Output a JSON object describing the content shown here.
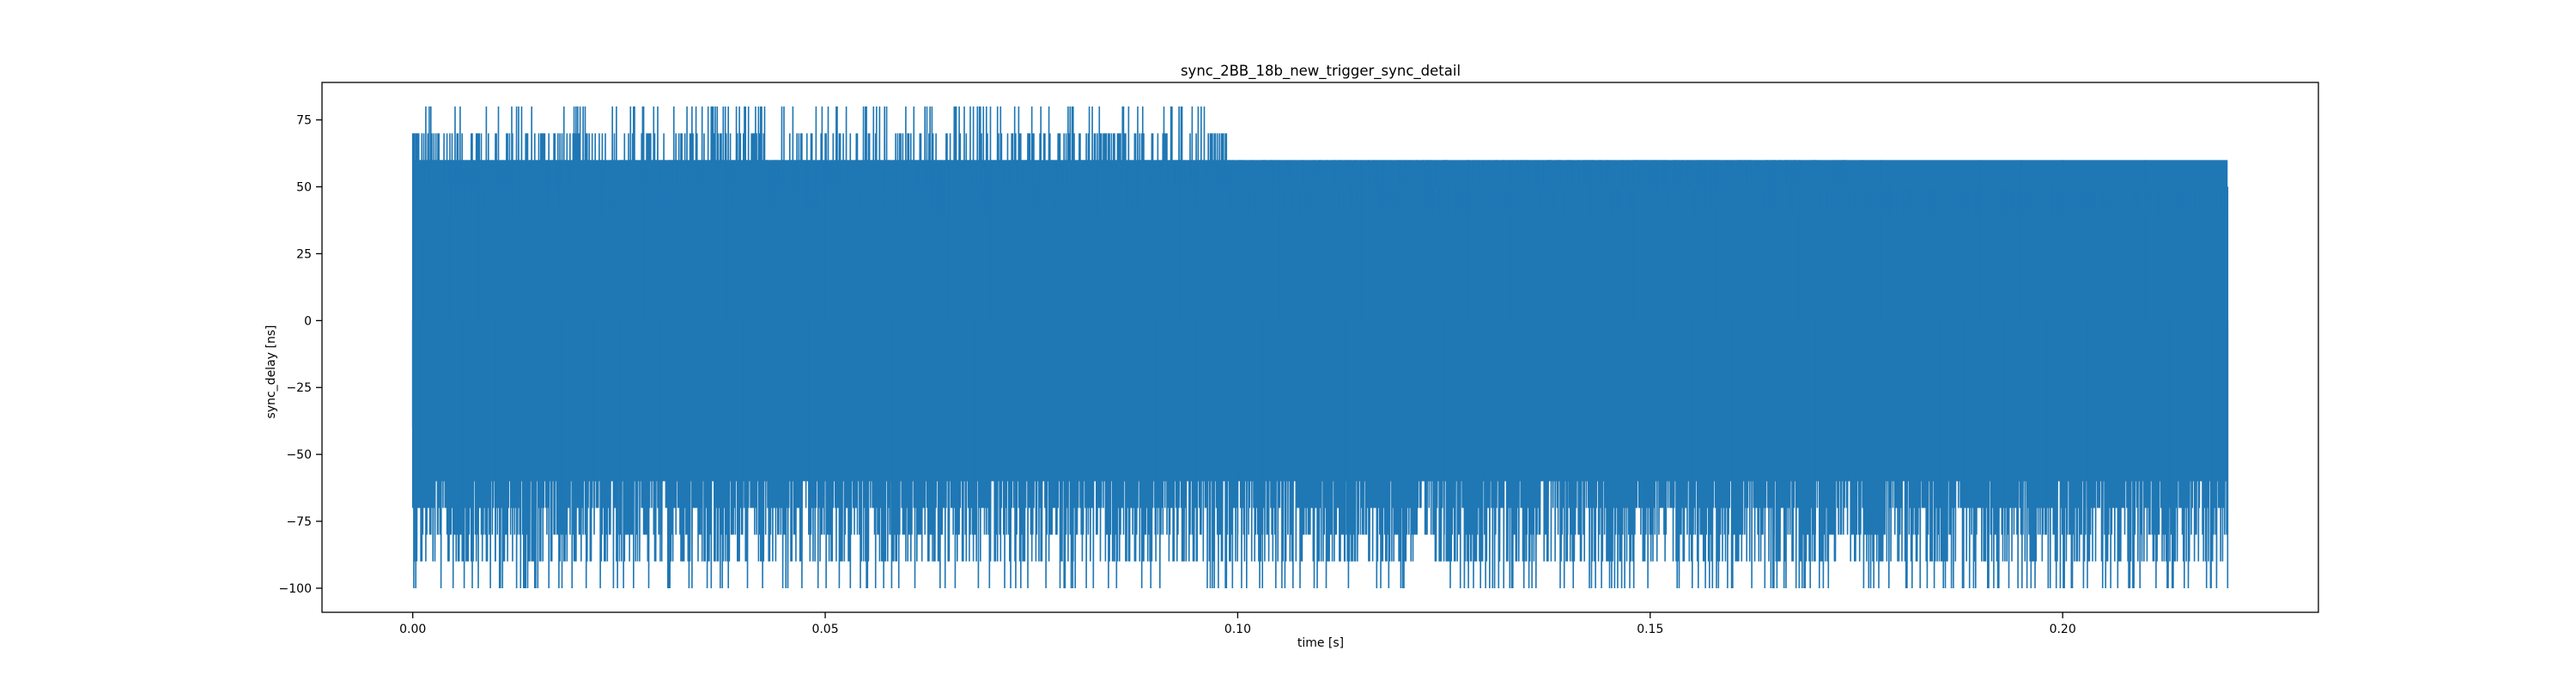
{
  "chart_data": {
    "type": "line",
    "title": "sync_2BB_18b_new_trigger_sync_detail",
    "xlabel": "time [s]",
    "ylabel": "sync_delay [ns]",
    "xlim": [
      -0.011,
      0.231
    ],
    "ylim": [
      -109,
      89
    ],
    "xticks": [
      0.0,
      0.05,
      0.1,
      0.15,
      0.2
    ],
    "xtick_labels": [
      "0.00",
      "0.05",
      "0.10",
      "0.15",
      "0.20"
    ],
    "yticks": [
      75,
      50,
      25,
      0,
      -25,
      -50,
      -75,
      -100
    ],
    "ytick_labels": [
      "75",
      "50",
      "25",
      "0",
      "−25",
      "−50",
      "−75",
      "−100"
    ],
    "grid": false,
    "series": [
      {
        "color": "#1f77b4",
        "x": [
          0.0,
          0.0004,
          0.0008,
          0.0012,
          0.002,
          0.003,
          0.0045,
          0.006,
          0.008,
          0.01,
          0.012,
          0.014,
          0.016,
          0.018,
          0.02,
          0.022,
          0.023,
          0.025,
          0.028,
          0.03,
          0.032,
          0.035,
          0.038,
          0.04,
          0.043,
          0.045,
          0.048,
          0.05,
          0.053,
          0.055,
          0.058,
          0.06,
          0.063,
          0.065,
          0.068,
          0.07,
          0.073,
          0.075,
          0.078,
          0.08,
          0.083,
          0.085,
          0.088,
          0.09,
          0.093,
          0.095,
          0.098,
          0.1,
          0.103,
          0.105,
          0.108,
          0.11,
          0.113,
          0.115,
          0.118,
          0.12,
          0.123,
          0.125,
          0.128,
          0.13,
          0.133,
          0.135,
          0.138,
          0.14,
          0.143,
          0.145,
          0.148,
          0.15,
          0.153,
          0.155,
          0.158,
          0.16,
          0.163,
          0.165,
          0.168,
          0.17,
          0.173,
          0.175,
          0.178,
          0.18,
          0.183,
          0.185,
          0.188,
          0.19,
          0.193,
          0.195,
          0.198,
          0.2,
          0.203,
          0.205,
          0.208,
          0.21,
          0.213,
          0.215,
          0.218,
          0.22
        ],
        "y": [
          -40,
          70,
          -60,
          30,
          80,
          -80,
          70,
          -70,
          60,
          -90,
          80,
          -80,
          70,
          -80,
          80,
          -70,
          60,
          -80,
          70,
          -90,
          60,
          -80,
          70,
          -70,
          60,
          80,
          -80,
          70,
          -90,
          60,
          -80,
          70,
          -90,
          60,
          -80,
          60,
          -90,
          60,
          -80,
          -100,
          60,
          -90,
          60,
          -80,
          60,
          -90,
          60,
          -80,
          -100,
          60,
          -80,
          60,
          -90,
          60,
          -80,
          -100,
          60,
          -90,
          60,
          -80,
          60,
          -90,
          60,
          -80,
          60,
          -90,
          60,
          -80,
          60,
          -90,
          60,
          -100,
          60,
          -80,
          60,
          -90,
          60,
          -80,
          60,
          -90,
          50,
          -80,
          -100,
          60,
          -90,
          60,
          -80,
          60,
          -100,
          50,
          -100,
          60,
          -90,
          50,
          -100,
          -100
        ]
      }
    ]
  }
}
